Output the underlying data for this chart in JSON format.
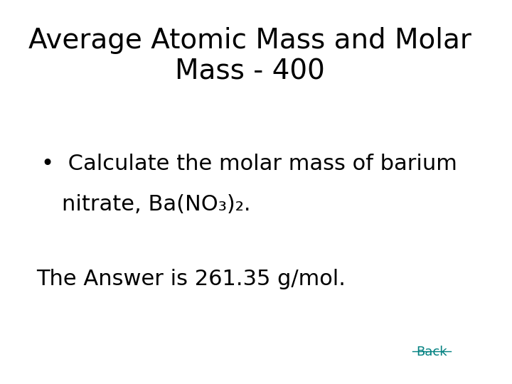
{
  "title_line1": "Average Atomic Mass and Molar",
  "title_line2": "Mass - 400",
  "title_fontsize": 28,
  "title_color": "#000000",
  "bullet_line1": "Calculate the molar mass of barium",
  "bullet_line2": "nitrate, Ba(NO₃)₂.",
  "bullet_fontsize": 22,
  "answer_text": "The Answer is 261.35 g/mol.",
  "answer_fontsize": 22,
  "back_text": "Back",
  "back_color": "#008080",
  "back_fontsize": 13,
  "background_color": "#ffffff",
  "bullet_symbol": "•"
}
